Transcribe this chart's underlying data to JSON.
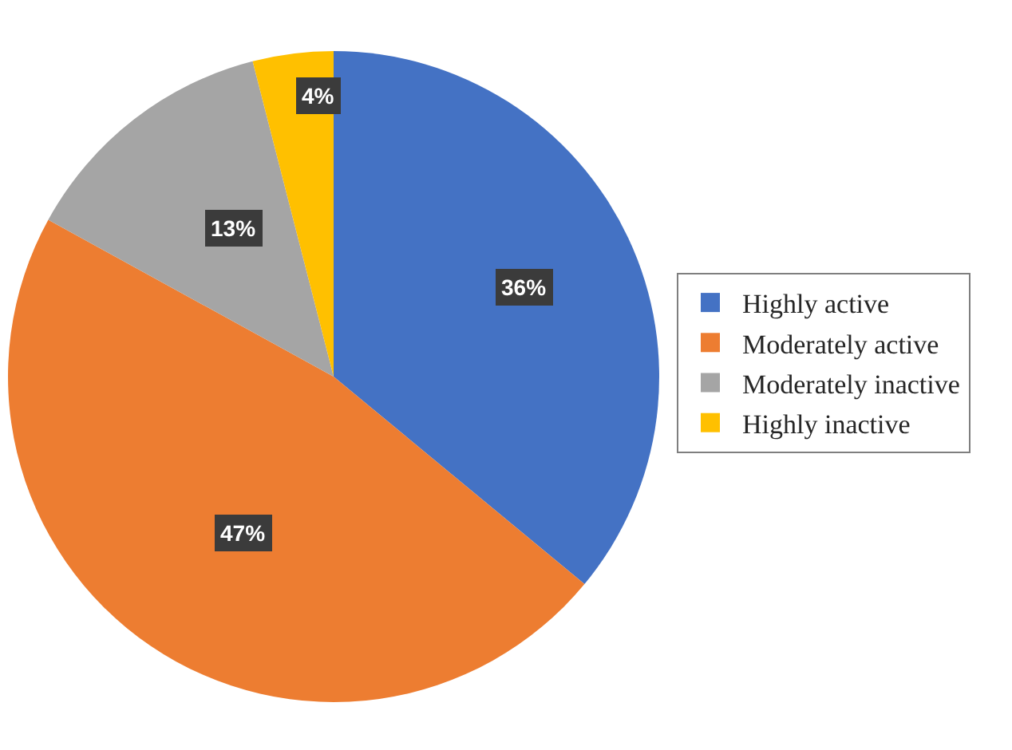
{
  "chart_data": {
    "type": "pie",
    "categories": [
      "Highly active",
      "Moderately active",
      "Moderately inactive",
      "Highly inactive"
    ],
    "values": [
      36,
      47,
      13,
      4
    ],
    "colors": [
      "#4472c4",
      "#ed7d31",
      "#a5a5a5",
      "#ffc000"
    ],
    "value_labels": [
      "36%",
      "47%",
      "13%",
      "4%"
    ],
    "legend": "right"
  }
}
